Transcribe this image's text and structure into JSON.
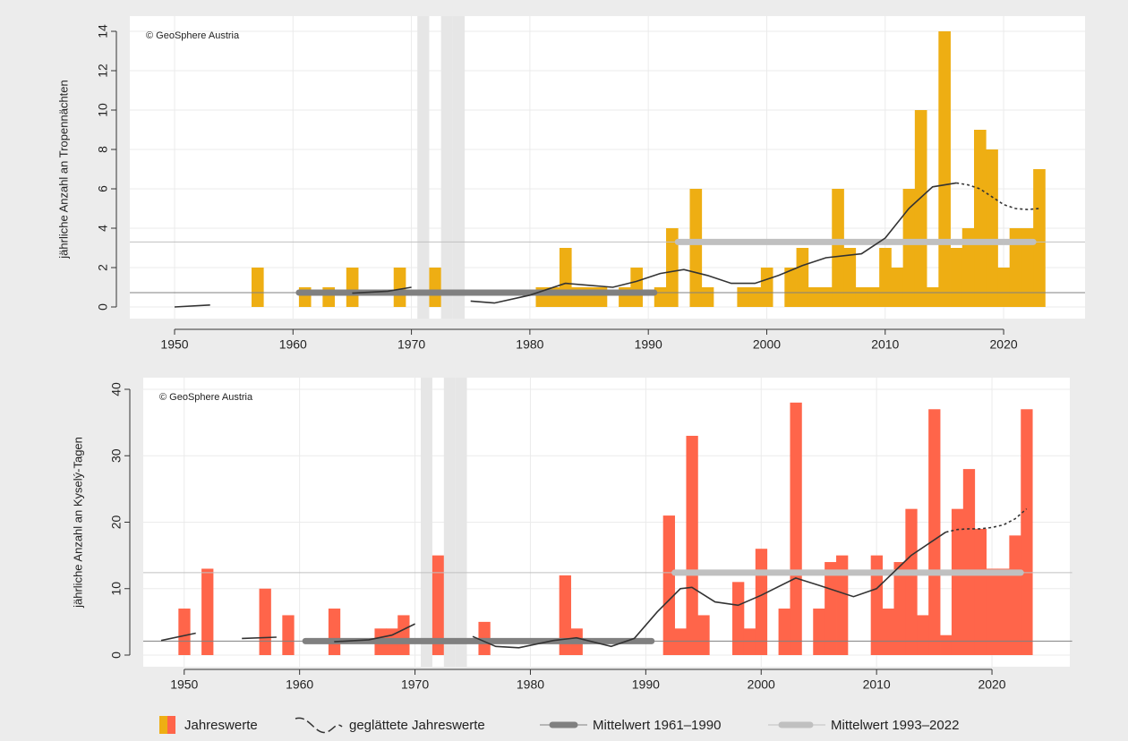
{
  "legend": [
    "Jahreswerte",
    "geglättete Jahreswerte",
    "Mittelwert 1961–1990",
    "Mittelwert 1993–2022"
  ],
  "chart_data": [
    {
      "type": "bar",
      "ylabel": "jährliche Anzahl an Tropennächten",
      "source": "© GeoSphere Austria",
      "color": "#eeae13",
      "grid": true,
      "xlim": [
        1947,
        2024
      ],
      "ylim": [
        0,
        14
      ],
      "xticks": [
        1950,
        1960,
        1970,
        1980,
        1990,
        2000,
        2010,
        2020
      ],
      "yticks": [
        0,
        2,
        4,
        6,
        8,
        10,
        12,
        14
      ],
      "x": [
        1950,
        1951,
        1952,
        1953,
        1954,
        1955,
        1956,
        1957,
        1958,
        1959,
        1960,
        1961,
        1962,
        1963,
        1964,
        1965,
        1966,
        1967,
        1968,
        1969,
        1970,
        1971,
        1972,
        1973,
        1974,
        1975,
        1976,
        1977,
        1978,
        1979,
        1980,
        1981,
        1982,
        1983,
        1984,
        1985,
        1986,
        1987,
        1988,
        1989,
        1990,
        1991,
        1992,
        1993,
        1994,
        1995,
        1996,
        1997,
        1998,
        1999,
        2000,
        2001,
        2002,
        2003,
        2004,
        2005,
        2006,
        2007,
        2008,
        2009,
        2010,
        2011,
        2012,
        2013,
        2014,
        2015,
        2016,
        2017,
        2018,
        2019,
        2020,
        2021,
        2022,
        2023
      ],
      "values": [
        0,
        0,
        0,
        0,
        0,
        0,
        0,
        2,
        0,
        0,
        0,
        1,
        0,
        1,
        0,
        2,
        0,
        0,
        0,
        2,
        0,
        null,
        2,
        null,
        null,
        0,
        0,
        0,
        0,
        0,
        0,
        1,
        1,
        3,
        1,
        1,
        1,
        0,
        1,
        2,
        0,
        1,
        4,
        0,
        6,
        1,
        0,
        0,
        1,
        1,
        2,
        0,
        2,
        3,
        1,
        1,
        6,
        3,
        1,
        1,
        3,
        2,
        6,
        10,
        1,
        14,
        3,
        4,
        9,
        8,
        2,
        4,
        4,
        7
      ],
      "smooth": {
        "color": "#333333",
        "x": [
          1950,
          1953,
          1957,
          1961,
          1965,
          1968,
          1970,
          1975,
          1977,
          1980,
          1983,
          1985,
          1987,
          1989,
          1991,
          1993,
          1995,
          1997,
          1999,
          2001,
          2003,
          2005,
          2008,
          2010,
          2012,
          2014,
          2016
        ],
        "values": [
          0,
          0.1,
          0.4,
          0.5,
          0.7,
          0.8,
          1.0,
          0.3,
          0.2,
          0.6,
          1.2,
          1.1,
          1.0,
          1.3,
          1.7,
          1.9,
          1.6,
          1.2,
          1.2,
          1.6,
          2.1,
          2.5,
          2.7,
          3.5,
          5.0,
          6.1,
          6.3
        ]
      },
      "smooth_dashed": {
        "x": [
          2016,
          2017,
          2018,
          2019,
          2020,
          2021,
          2022,
          2023
        ],
        "values": [
          6.3,
          6.2,
          6.0,
          5.6,
          5.2,
          5.0,
          4.95,
          5.0
        ]
      },
      "means": [
        {
          "value": 0.73,
          "from": 1961,
          "to": 1990,
          "color": "#808080"
        },
        {
          "value": 3.3,
          "from": 1993,
          "to": 2022,
          "color": "#c0c0c0"
        }
      ]
    },
    {
      "type": "bar",
      "ylabel": "jährliche Anzahl an Kyselý-Tagen",
      "source": "© GeoSphere Austria",
      "color": "#ff654a",
      "grid": true,
      "xlim": [
        1947,
        2024
      ],
      "ylim": [
        0,
        40
      ],
      "xticks": [
        1950,
        1960,
        1970,
        1980,
        1990,
        2000,
        2010,
        2020
      ],
      "yticks": [
        0,
        10,
        20,
        30,
        40
      ],
      "x": [
        1948,
        1949,
        1950,
        1951,
        1952,
        1953,
        1954,
        1955,
        1956,
        1957,
        1958,
        1959,
        1960,
        1961,
        1962,
        1963,
        1964,
        1965,
        1966,
        1967,
        1968,
        1969,
        1970,
        1971,
        1972,
        1973,
        1974,
        1975,
        1976,
        1977,
        1978,
        1979,
        1980,
        1981,
        1982,
        1983,
        1984,
        1985,
        1986,
        1987,
        1988,
        1989,
        1990,
        1991,
        1992,
        1993,
        1994,
        1995,
        1996,
        1997,
        1998,
        1999,
        2000,
        2001,
        2002,
        2003,
        2004,
        2005,
        2006,
        2007,
        2008,
        2009,
        2010,
        2011,
        2012,
        2013,
        2014,
        2015,
        2016,
        2017,
        2018,
        2019,
        2020,
        2021,
        2022,
        2023
      ],
      "values": [
        0,
        0,
        7,
        0,
        13,
        0,
        0,
        0,
        0,
        10,
        0,
        6,
        0,
        0,
        0,
        7,
        0,
        0,
        0,
        4,
        4,
        6,
        0,
        null,
        15,
        null,
        null,
        0,
        5,
        0,
        0,
        0,
        0,
        0,
        0,
        12,
        4,
        0,
        0,
        0,
        0,
        0,
        0,
        0,
        21,
        4,
        33,
        6,
        0,
        0,
        11,
        4,
        16,
        0,
        7,
        38,
        0,
        7,
        14,
        15,
        0,
        0,
        15,
        7,
        14,
        22,
        6,
        37,
        3,
        22,
        28,
        19,
        13,
        13,
        18,
        37
      ],
      "smooth": {
        "color": "#333333",
        "x": [
          1948,
          1951,
          1955,
          1958,
          1963,
          1966,
          1968,
          1970,
          1975,
          1977,
          1979,
          1982,
          1984,
          1987,
          1989,
          1991,
          1993,
          1994,
          1996,
          1998,
          2000,
          2003,
          2005,
          2008,
          2010,
          2013,
          2016
        ],
        "values": [
          2.2,
          3.3,
          2.5,
          2.7,
          2.0,
          2.3,
          3.0,
          4.7,
          2.8,
          1.3,
          1.1,
          2.2,
          2.6,
          1.3,
          2.5,
          6.5,
          10.0,
          10.2,
          8.0,
          7.5,
          9.0,
          11.6,
          10.5,
          8.8,
          10.0,
          15.0,
          18.5
        ]
      },
      "smooth_dashed": {
        "x": [
          2016,
          2017,
          2018,
          2019,
          2020,
          2021,
          2022,
          2023
        ],
        "values": [
          18.5,
          18.9,
          19.0,
          19.0,
          19.2,
          19.6,
          20.5,
          22.0
        ]
      },
      "means": [
        {
          "value": 2.1,
          "from": 1961,
          "to": 1990,
          "color": "#808080"
        },
        {
          "value": 12.4,
          "from": 1993,
          "to": 2022,
          "color": "#c0c0c0"
        }
      ]
    }
  ]
}
